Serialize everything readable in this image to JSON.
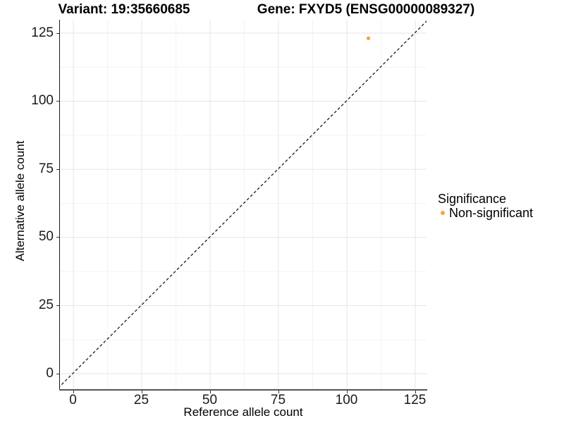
{
  "chart_data": {
    "type": "scatter",
    "titles": {
      "left": "Variant: 19:35660685",
      "right": "Gene: FXYD5 (ENSG00000089327)"
    },
    "xlabel": "Reference allele count",
    "ylabel": "Alternative allele count",
    "xlim": [
      -8,
      132
    ],
    "ylim": [
      -8,
      132
    ],
    "xticks": [
      0,
      25,
      50,
      75,
      100,
      125
    ],
    "yticks": [
      0,
      25,
      50,
      75,
      100,
      125
    ],
    "minor_ticks": [
      12.5,
      37.5,
      62.5,
      87.5,
      112.5
    ],
    "grid": {
      "show": true,
      "major_color": "#E6E6E6",
      "minor_color": "#F3F3F3"
    },
    "reference_line": {
      "kind": "identity",
      "slope": 1,
      "intercept": 0,
      "style": "dashed",
      "color": "#1a1a1a"
    },
    "series": [
      {
        "name": "Non-significant",
        "color": "#F9A242",
        "points": [
          {
            "x": 108,
            "y": 123
          }
        ]
      }
    ],
    "legend": {
      "title": "Significance",
      "position": "right",
      "items": [
        {
          "label": "Non-significant",
          "color": "#F9A242"
        }
      ]
    }
  }
}
